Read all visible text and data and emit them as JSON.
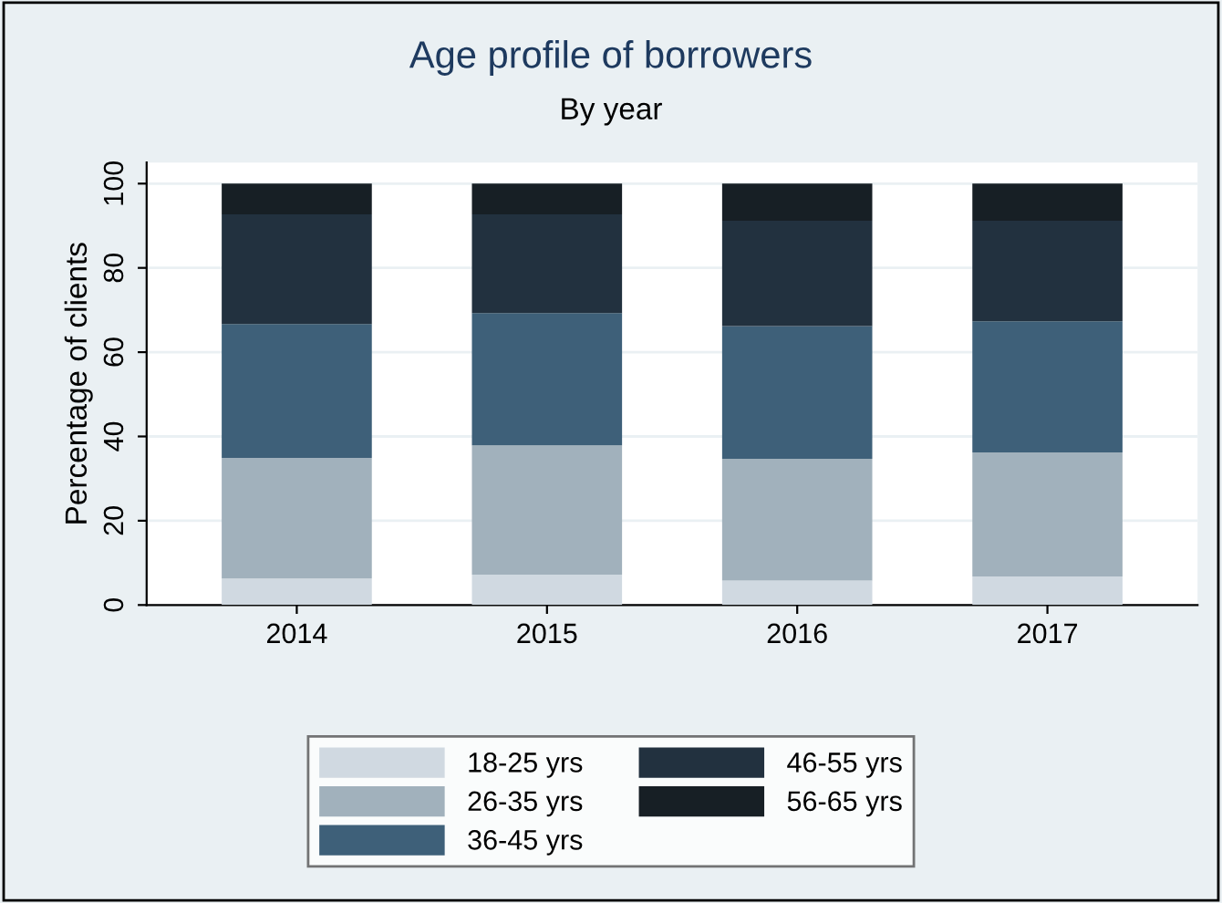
{
  "chart_data": {
    "type": "bar",
    "title": "Age profile of borrowers",
    "subtitle": "By year",
    "ylabel": "Percentage of clients",
    "categories": [
      "2014",
      "2015",
      "2016",
      "2017"
    ],
    "stacked": true,
    "series": [
      {
        "name": "18-25 yrs",
        "color": "#d0d9e1",
        "values": [
          6.3,
          7.2,
          5.8,
          6.8
        ]
      },
      {
        "name": "26-35 yrs",
        "color": "#a1b1bc",
        "values": [
          28.6,
          30.7,
          28.9,
          29.4
        ]
      },
      {
        "name": "36-45 yrs",
        "color": "#3e6079",
        "values": [
          31.8,
          31.4,
          31.5,
          31.1
        ]
      },
      {
        "name": "46-55 yrs",
        "color": "#22313f",
        "values": [
          26.0,
          23.4,
          25.0,
          23.9
        ]
      },
      {
        "name": "56-65 yrs",
        "color": "#171f25",
        "values": [
          7.3,
          7.3,
          8.8,
          8.8
        ]
      }
    ],
    "ylim": [
      0,
      105
    ],
    "yticks": [
      0,
      20,
      40,
      60,
      80,
      100
    ],
    "grid": "y",
    "legend": "bottom"
  }
}
